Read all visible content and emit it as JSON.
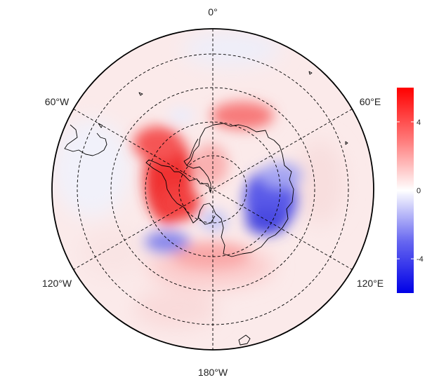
{
  "map": {
    "projection": "south-polar-stereographic",
    "longitude_labels": {
      "top": "0°",
      "upper_right": "60°E",
      "lower_right": "120°E",
      "bottom": "180°W",
      "lower_left": "120°W",
      "upper_left": "60°W"
    },
    "graticule": "dashed",
    "coastlines": "black"
  },
  "colorbar": {
    "ticks": [
      "4",
      "0",
      "-4"
    ],
    "tick_values": [
      4,
      0,
      -4
    ],
    "range": [
      -6,
      6
    ],
    "colors": {
      "low": "#0000e6",
      "mid": "#ffffff",
      "high": "#ff0000"
    }
  },
  "anomaly_field": {
    "positive_regions": [
      "Amundsen-Bellingshausen Sea",
      "Weddell Sea",
      "Ross Sea"
    ],
    "negative_regions": [
      "East Antarctica interior",
      "Pacific sector near 150°W"
    ]
  }
}
